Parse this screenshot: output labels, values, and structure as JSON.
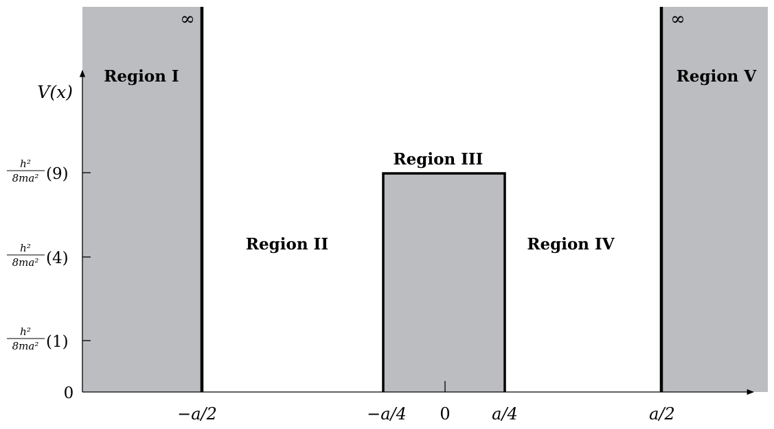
{
  "colors": {
    "barrier_fill": "#bcbdc0",
    "line": "#000000",
    "background": "#ffffff"
  },
  "regions": [
    {
      "id": "I",
      "label": "Region I"
    },
    {
      "id": "II",
      "label": "Region II"
    },
    {
      "id": "III",
      "label": "Region III"
    },
    {
      "id": "IV",
      "label": "Region IV"
    },
    {
      "id": "V",
      "label": "Region V"
    }
  ],
  "infinity_left": "∞",
  "infinity_right": "∞",
  "y_axis": {
    "label": "V(x)",
    "ticks": [
      {
        "num": "h²",
        "den": "8ma²",
        "factor": "(1)"
      },
      {
        "num": "h²",
        "den": "8ma²",
        "factor": "(4)"
      },
      {
        "num": "h²",
        "den": "8ma²",
        "factor": "(9)"
      }
    ],
    "origin": "0"
  },
  "x_axis": {
    "ticks": [
      "−a/2",
      "−a/4",
      "0",
      "a/4",
      "a/2"
    ]
  }
}
